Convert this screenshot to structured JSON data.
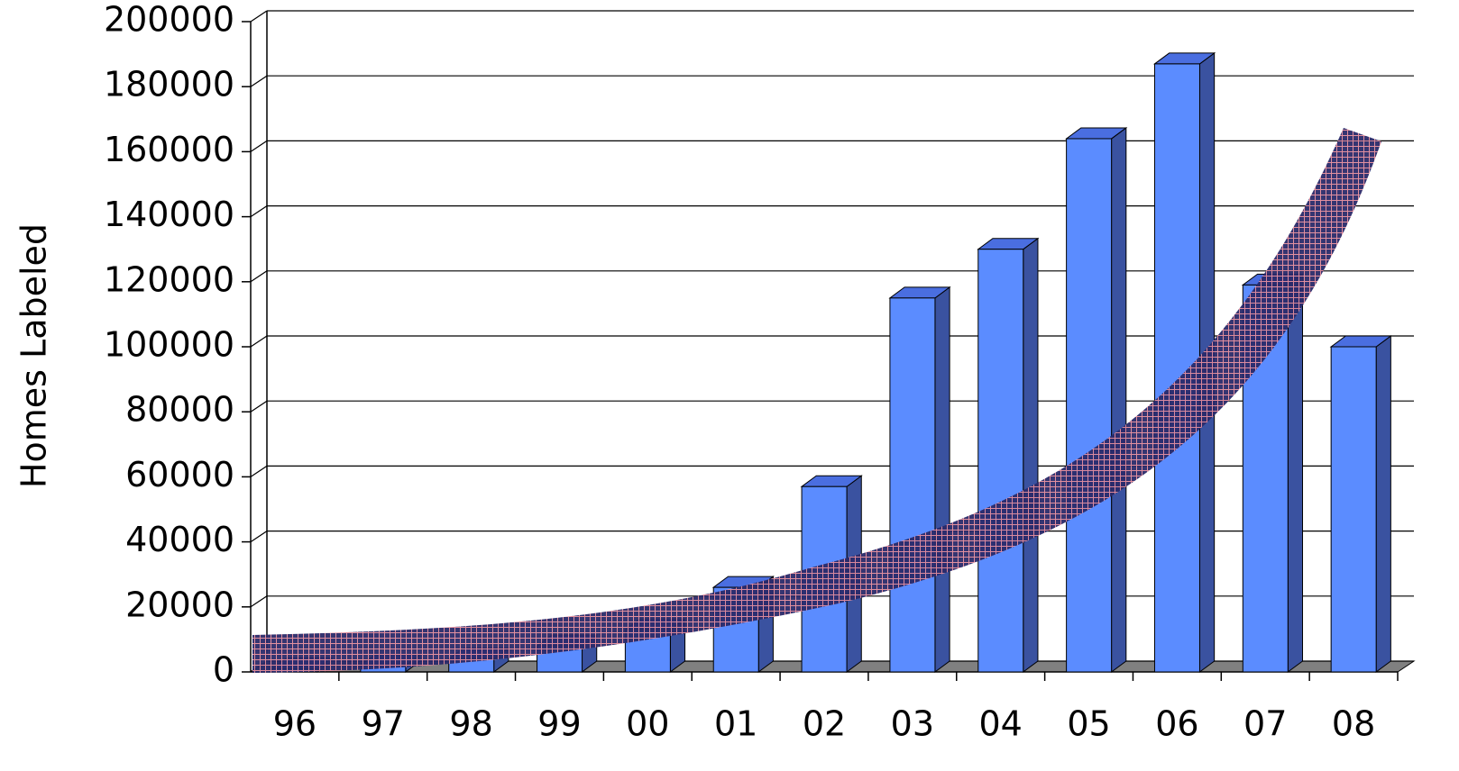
{
  "chart_data": {
    "type": "bar3d",
    "y_label": "Homes Labeled",
    "categories": [
      "96",
      "97",
      "98",
      "99",
      "00",
      "01",
      "02",
      "03",
      "04",
      "05",
      "06",
      "07",
      "08"
    ],
    "values": [
      1000,
      2000,
      4000,
      8000,
      13000,
      26000,
      57000,
      115000,
      130000,
      164000,
      187000,
      119000,
      100000
    ],
    "color": "#5b8cff",
    "ylim": [
      0,
      200000
    ],
    "yticks": [
      0,
      20000,
      40000,
      60000,
      80000,
      100000,
      120000,
      140000,
      160000,
      180000,
      200000
    ],
    "grid": true
  }
}
